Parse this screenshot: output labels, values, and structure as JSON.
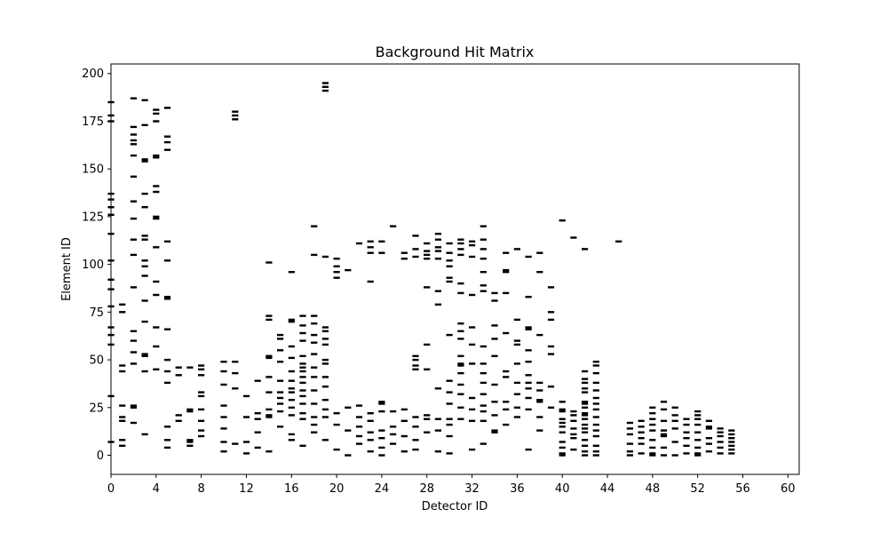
{
  "chart_data": {
    "type": "scatter",
    "title": "Background Hit Matrix",
    "xlabel": "Detector ID",
    "ylabel": "Element ID",
    "xlim": [
      0,
      61
    ],
    "ylim": [
      -10,
      205
    ],
    "xticks": [
      0,
      4,
      8,
      12,
      16,
      20,
      24,
      28,
      32,
      36,
      40,
      44,
      48,
      52,
      56,
      60
    ],
    "yticks": [
      0,
      25,
      50,
      75,
      100,
      125,
      150,
      175,
      200
    ],
    "grid": false,
    "marker": "horizontal-dash",
    "color": "#000000",
    "series": [
      {
        "name": "",
        "detector": 0,
        "elements": [
          7,
          31,
          58,
          63,
          67,
          78,
          87,
          92,
          102,
          116,
          126,
          130,
          134,
          137,
          175,
          178,
          185
        ]
      },
      {
        "name": "",
        "detector": 1,
        "elements": [
          5,
          8,
          18,
          20,
          26,
          44,
          47,
          75,
          79
        ]
      },
      {
        "name": "",
        "detector": 2,
        "elements": [
          17,
          25,
          26,
          48,
          54,
          60,
          65,
          88,
          105,
          113,
          124,
          133,
          146,
          157,
          163,
          165,
          168,
          172,
          187
        ]
      },
      {
        "name": "",
        "detector": 3,
        "elements": [
          11,
          44,
          52,
          53,
          70,
          81,
          94,
          99,
          102,
          113,
          115,
          130,
          137,
          154,
          155,
          173,
          186
        ]
      },
      {
        "name": "",
        "detector": 4,
        "elements": [
          45,
          57,
          67,
          84,
          91,
          109,
          124,
          125,
          138,
          141,
          156,
          157,
          175,
          179,
          181
        ]
      },
      {
        "name": "",
        "detector": 5,
        "elements": [
          4,
          8,
          15,
          38,
          44,
          50,
          66,
          82,
          83,
          102,
          112,
          160,
          164,
          167,
          182
        ]
      },
      {
        "name": "",
        "detector": 6,
        "elements": [
          18,
          21,
          42,
          46
        ]
      },
      {
        "name": "",
        "detector": 7,
        "elements": [
          5,
          7,
          8,
          23,
          24,
          46
        ]
      },
      {
        "name": "",
        "detector": 8,
        "elements": [
          10,
          13,
          18,
          24,
          31,
          33,
          42,
          45,
          47
        ]
      },
      {
        "name": "",
        "detector": 10,
        "elements": [
          2,
          7,
          14,
          20,
          26,
          37,
          44,
          49
        ]
      },
      {
        "name": "",
        "detector": 11,
        "elements": [
          6,
          35,
          43,
          49,
          176,
          178,
          180
        ]
      },
      {
        "name": "",
        "detector": 12,
        "elements": [
          1,
          7,
          20,
          31
        ]
      },
      {
        "name": "",
        "detector": 13,
        "elements": [
          4,
          12,
          19,
          22,
          39
        ]
      },
      {
        "name": "",
        "detector": 14,
        "elements": [
          2,
          20,
          21,
          24,
          33,
          41,
          51,
          52,
          71,
          73,
          101
        ]
      },
      {
        "name": "",
        "detector": 15,
        "elements": [
          15,
          23,
          27,
          30,
          33,
          39,
          49,
          55,
          61,
          63
        ]
      },
      {
        "name": "",
        "detector": 16,
        "elements": [
          8,
          11,
          21,
          25,
          29,
          33,
          35,
          39,
          44,
          51,
          57,
          70,
          71,
          96
        ]
      },
      {
        "name": "",
        "detector": 17,
        "elements": [
          5,
          19,
          22,
          27,
          31,
          34,
          38,
          41,
          44,
          46,
          48,
          52,
          60,
          64,
          68,
          73
        ]
      },
      {
        "name": "",
        "detector": 18,
        "elements": [
          12,
          16,
          20,
          27,
          34,
          41,
          46,
          53,
          59,
          63,
          69,
          73,
          105,
          120
        ]
      },
      {
        "name": "",
        "detector": 19,
        "elements": [
          8,
          20,
          24,
          29,
          36,
          41,
          48,
          50,
          58,
          61,
          65,
          67,
          104,
          191,
          193,
          195
        ]
      },
      {
        "name": "",
        "detector": 20,
        "elements": [
          3,
          16,
          22,
          93,
          96,
          99,
          103
        ]
      },
      {
        "name": "",
        "detector": 21,
        "elements": [
          0,
          13,
          25,
          97
        ]
      },
      {
        "name": "",
        "detector": 22,
        "elements": [
          6,
          10,
          15,
          20,
          26,
          111
        ]
      },
      {
        "name": "",
        "detector": 23,
        "elements": [
          2,
          8,
          12,
          18,
          22,
          91,
          106,
          109,
          112
        ]
      },
      {
        "name": "",
        "detector": 24,
        "elements": [
          0,
          4,
          9,
          13,
          23,
          27,
          28,
          106,
          112
        ]
      },
      {
        "name": "",
        "detector": 25,
        "elements": [
          6,
          11,
          15,
          23,
          120
        ]
      },
      {
        "name": "",
        "detector": 26,
        "elements": [
          2,
          10,
          18,
          24,
          103,
          106
        ]
      },
      {
        "name": "",
        "detector": 27,
        "elements": [
          3,
          8,
          15,
          20,
          45,
          47,
          50,
          52,
          104,
          108,
          115
        ]
      },
      {
        "name": "",
        "detector": 28,
        "elements": [
          12,
          19,
          21,
          45,
          58,
          88,
          103,
          105,
          107,
          111
        ]
      },
      {
        "name": "",
        "detector": 29,
        "elements": [
          2,
          13,
          19,
          35,
          79,
          86,
          103,
          107,
          109,
          113,
          116
        ]
      },
      {
        "name": "",
        "detector": 30,
        "elements": [
          1,
          10,
          16,
          19,
          27,
          33,
          39,
          63,
          91,
          93,
          99,
          102,
          106,
          111
        ]
      },
      {
        "name": "",
        "detector": 31,
        "elements": [
          19,
          25,
          32,
          37,
          43,
          47,
          48,
          52,
          61,
          65,
          69,
          85,
          90,
          105,
          108,
          111,
          113
        ]
      },
      {
        "name": "",
        "detector": 32,
        "elements": [
          3,
          18,
          24,
          30,
          48,
          58,
          67,
          84,
          104,
          110,
          112
        ]
      },
      {
        "name": "",
        "detector": 33,
        "elements": [
          6,
          18,
          23,
          26,
          32,
          38,
          43,
          48,
          57,
          86,
          89,
          96,
          103,
          108,
          113,
          120
        ]
      },
      {
        "name": "",
        "detector": 34,
        "elements": [
          12,
          13,
          21,
          28,
          37,
          52,
          61,
          68,
          81,
          85
        ]
      },
      {
        "name": "",
        "detector": 35,
        "elements": [
          16,
          24,
          28,
          41,
          44,
          64,
          85,
          96,
          97,
          106
        ]
      },
      {
        "name": "",
        "detector": 36,
        "elements": [
          20,
          25,
          32,
          38,
          48,
          58,
          60,
          71,
          108
        ]
      },
      {
        "name": "",
        "detector": 37,
        "elements": [
          3,
          24,
          30,
          35,
          38,
          42,
          49,
          55,
          66,
          67,
          83,
          104
        ]
      },
      {
        "name": "",
        "detector": 38,
        "elements": [
          13,
          20,
          28,
          29,
          34,
          38,
          63,
          96,
          106
        ]
      },
      {
        "name": "",
        "detector": 39,
        "elements": [
          25,
          36,
          53,
          57,
          71,
          75,
          88
        ]
      },
      {
        "name": "",
        "detector": 40,
        "elements": [
          0,
          1,
          4,
          7,
          12,
          15,
          17,
          19,
          23,
          24,
          28,
          123
        ]
      },
      {
        "name": "",
        "detector": 41,
        "elements": [
          3,
          9,
          11,
          14,
          18,
          21,
          23,
          114
        ]
      },
      {
        "name": "",
        "detector": 42,
        "elements": [
          0,
          2,
          5,
          8,
          12,
          14,
          16,
          19,
          21,
          22,
          25,
          27,
          28,
          33,
          35,
          38,
          40,
          44,
          108
        ]
      },
      {
        "name": "",
        "detector": 43,
        "elements": [
          0,
          2,
          5,
          10,
          13,
          16,
          20,
          24,
          27,
          30,
          34,
          38,
          43,
          47,
          49
        ]
      },
      {
        "name": "",
        "detector": 45,
        "elements": [
          112
        ]
      },
      {
        "name": "",
        "detector": 46,
        "elements": [
          0,
          2,
          6,
          11,
          14,
          17
        ]
      },
      {
        "name": "",
        "detector": 47,
        "elements": [
          1,
          6,
          9,
          12,
          15,
          18
        ]
      },
      {
        "name": "",
        "detector": 48,
        "elements": [
          0,
          1,
          4,
          8,
          13,
          16,
          19,
          22,
          25
        ]
      },
      {
        "name": "",
        "detector": 49,
        "elements": [
          0,
          4,
          10,
          11,
          13,
          18,
          24,
          28
        ]
      },
      {
        "name": "",
        "detector": 50,
        "elements": [
          0,
          7,
          14,
          18,
          21,
          25
        ]
      },
      {
        "name": "",
        "detector": 51,
        "elements": [
          1,
          5,
          9,
          12,
          16,
          19
        ]
      },
      {
        "name": "",
        "detector": 52,
        "elements": [
          0,
          1,
          4,
          8,
          12,
          16,
          19,
          21,
          23
        ]
      },
      {
        "name": "",
        "detector": 53,
        "elements": [
          2,
          6,
          9,
          14,
          15,
          18
        ]
      },
      {
        "name": "",
        "detector": 54,
        "elements": [
          1,
          4,
          7,
          10,
          12,
          14
        ]
      },
      {
        "name": "",
        "detector": 55,
        "elements": [
          1,
          3,
          5,
          7,
          9,
          11,
          13
        ]
      }
    ]
  }
}
